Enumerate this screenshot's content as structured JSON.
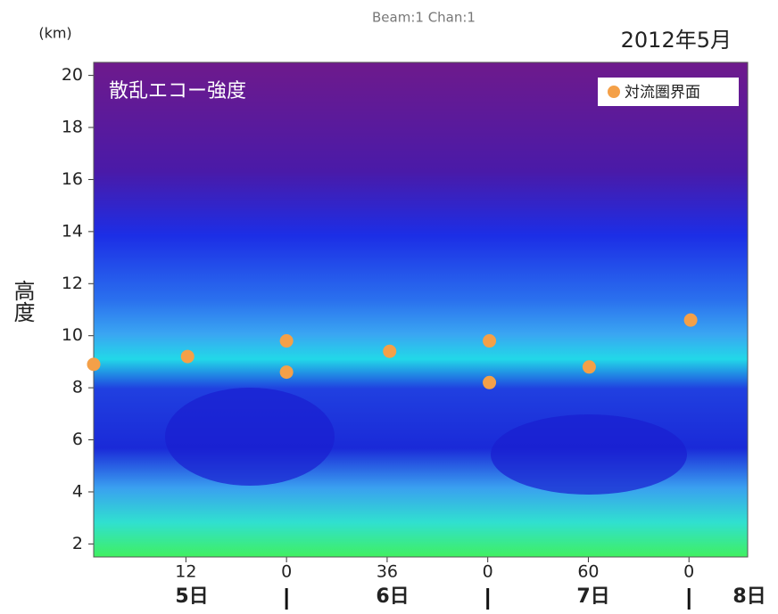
{
  "chart_data": {
    "type": "scatter",
    "title": "Beam:1   Chan:1",
    "date_label": "2012年5月",
    "y_unit": "(km)",
    "y_label": "高度",
    "panel_label": "散乱エコー強度",
    "series": [
      {
        "name": "対流圏界面",
        "color": "#f4a048",
        "x": [
          1.0,
          12.2,
          24.0,
          24.0,
          36.3,
          48.2,
          48.2,
          60.1,
          72.2
        ],
        "values": [
          8.9,
          9.2,
          9.8,
          8.6,
          9.4,
          9.8,
          8.2,
          8.8,
          10.6
        ]
      }
    ],
    "xlim": [
      1,
      79
    ],
    "xticks": [
      12,
      {
        "value": 24,
        "label": "0"
      },
      36,
      {
        "value": 48,
        "label": "0"
      },
      60,
      {
        "value": 72,
        "label": "0"
      }
    ],
    "day_labels": [
      "5日",
      "6日",
      "7日",
      "8日"
    ],
    "ylim": [
      1.5,
      20.5
    ],
    "yticks": [
      2,
      4,
      6,
      8,
      10,
      12,
      14,
      16,
      18,
      20
    ],
    "legend": "upper right"
  }
}
